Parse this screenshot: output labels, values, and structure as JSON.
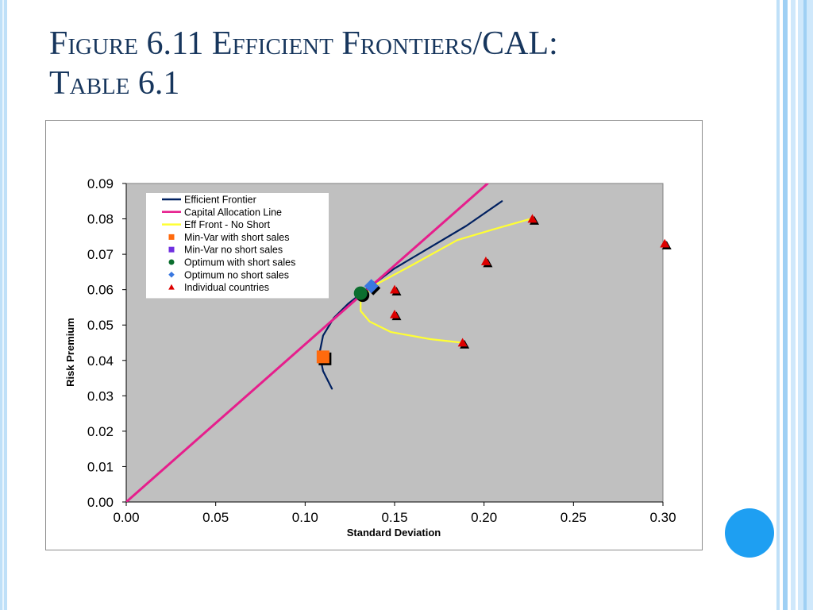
{
  "slide": {
    "title_line1": "Figure 6.11 Efficient Frontiers/CAL:",
    "title_line2": "Table 6.1",
    "colors": {
      "title": "#17365d",
      "accent_circle": "#1e9ff2",
      "side_bar": "#bfe0f8"
    }
  },
  "chart_data": {
    "type": "scatter",
    "xlabel": "Standard Deviation",
    "ylabel": "Risk Premium",
    "xlim": [
      0,
      0.3
    ],
    "ylim": [
      0,
      0.09
    ],
    "x_ticks": [
      "0.00",
      "0.05",
      "0.10",
      "0.15",
      "0.20",
      "0.25",
      "0.30"
    ],
    "y_ticks": [
      "0.00",
      "0.01",
      "0.02",
      "0.03",
      "0.04",
      "0.05",
      "0.06",
      "0.07",
      "0.08",
      "0.09"
    ],
    "grid": false,
    "legend_position": "top-left",
    "plot_background": "#c0c0c0",
    "series": [
      {
        "name": "Efficient Frontier",
        "kind": "line",
        "color": "#002060",
        "points": [
          [
            0.115,
            0.032
          ],
          [
            0.11,
            0.037
          ],
          [
            0.108,
            0.042
          ],
          [
            0.11,
            0.047
          ],
          [
            0.116,
            0.052
          ],
          [
            0.124,
            0.056
          ],
          [
            0.134,
            0.06
          ],
          [
            0.15,
            0.066
          ],
          [
            0.17,
            0.072
          ],
          [
            0.19,
            0.078
          ],
          [
            0.21,
            0.085
          ]
        ]
      },
      {
        "name": "Capital Allocation Line",
        "kind": "line",
        "color": "#e61e8c",
        "points": [
          [
            0.0,
            0.0
          ],
          [
            0.202,
            0.09
          ]
        ]
      },
      {
        "name": "Eff Front - No Short",
        "kind": "line",
        "color": "#ffff33",
        "points": [
          [
            0.226,
            0.08
          ],
          [
            0.205,
            0.077
          ],
          [
            0.185,
            0.074
          ],
          [
            0.16,
            0.067
          ],
          [
            0.138,
            0.061
          ],
          [
            0.131,
            0.057
          ],
          [
            0.131,
            0.054
          ],
          [
            0.136,
            0.051
          ],
          [
            0.148,
            0.048
          ],
          [
            0.17,
            0.046
          ],
          [
            0.188,
            0.045
          ]
        ]
      },
      {
        "name": "Min-Var with short sales",
        "kind": "marker",
        "marker": "square",
        "color": "#ff6a0d",
        "points": [
          [
            0.11,
            0.041
          ]
        ]
      },
      {
        "name": "Min-Var no short sales",
        "kind": "marker",
        "marker": "square",
        "color": "#7030e0",
        "points": []
      },
      {
        "name": "Optimum with short sales",
        "kind": "marker",
        "marker": "circle",
        "color": "#0b6e2e",
        "points": [
          [
            0.131,
            0.059
          ]
        ]
      },
      {
        "name": "Optimum no short sales",
        "kind": "marker",
        "marker": "diamond",
        "color": "#3a78e0",
        "points": [
          [
            0.137,
            0.061
          ]
        ]
      },
      {
        "name": "Individual countries",
        "kind": "marker",
        "marker": "triangle",
        "color": "#dd0000",
        "points": [
          [
            0.15,
            0.06
          ],
          [
            0.15,
            0.053
          ],
          [
            0.188,
            0.045
          ],
          [
            0.201,
            0.068
          ],
          [
            0.227,
            0.08
          ],
          [
            0.301,
            0.073
          ]
        ]
      }
    ]
  }
}
